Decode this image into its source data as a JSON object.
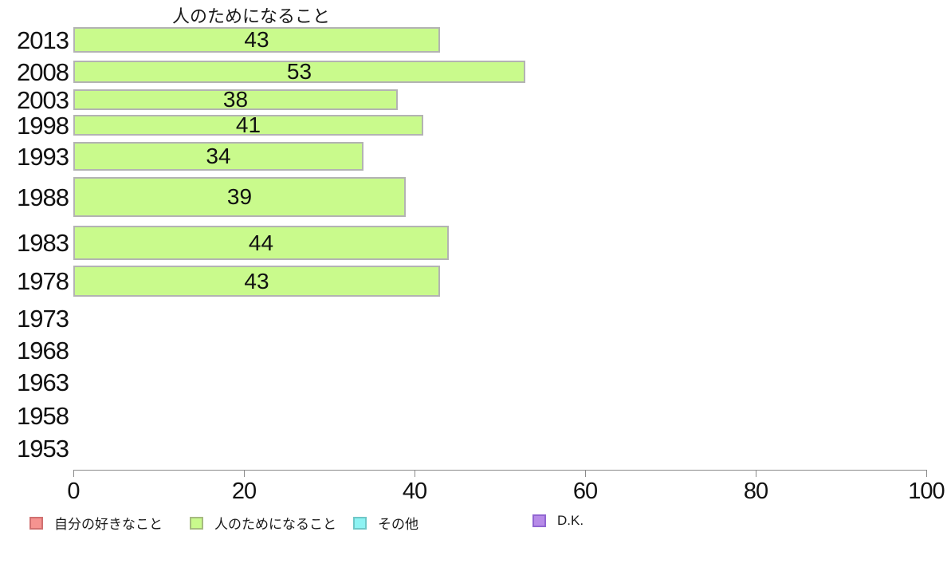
{
  "chart_data": {
    "type": "bar",
    "orientation": "horizontal",
    "title": "人のためになること",
    "categories": [
      "2013",
      "2008",
      "2003",
      "1998",
      "1993",
      "1988",
      "1983",
      "1978",
      "1973",
      "1968",
      "1963",
      "1958",
      "1953"
    ],
    "series": [
      {
        "name": "人のためになること",
        "color": "#c9fa8c",
        "values": [
          43,
          53,
          38,
          41,
          34,
          39,
          44,
          43,
          null,
          null,
          null,
          null,
          null
        ]
      }
    ],
    "bar_border_color": "#b3b3b3",
    "value_labels_shown": true,
    "xlabel": "",
    "ylabel": "",
    "xlim": [
      0,
      100
    ],
    "x_ticks": [
      0,
      20,
      40,
      60,
      80,
      100
    ],
    "grid": false,
    "legend_position": "bottom",
    "legend": [
      {
        "label": "自分の好きなこと",
        "color": "#f59390",
        "border": "#d07070"
      },
      {
        "label": "人のためになること",
        "color": "#c9fa8c",
        "border": "#a6bb80"
      },
      {
        "label": "その他",
        "color": "#8df3f3",
        "border": "#6fc7c7"
      },
      {
        "label": "D.K.",
        "color": "#b78be8",
        "border": "#9166d2"
      }
    ]
  }
}
